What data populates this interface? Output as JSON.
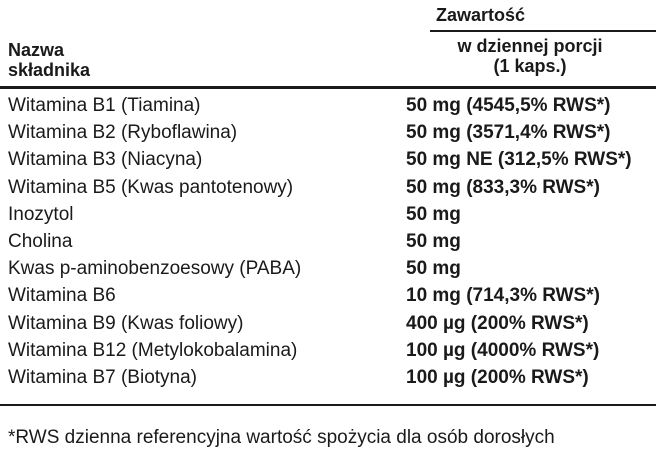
{
  "header": {
    "group_title": "Zawartość",
    "name_col": "Nazwa składnika",
    "amount_col": "w dziennej porcji (1 kaps.)"
  },
  "table": {
    "rows": [
      [
        "Witamina B1 (Tiamina)",
        "50 mg (4545,5% RWS*)"
      ],
      [
        "Witamina B2 (Ryboflawina)",
        "50 mg (3571,4% RWS*)"
      ],
      [
        "Witamina B3 (Niacyna)",
        "50 mg NE (312,5% RWS*)"
      ],
      [
        "Witamina B5 (Kwas pantotenowy)",
        "50 mg (833,3% RWS*)"
      ],
      [
        "Inozytol",
        "50 mg"
      ],
      [
        "Cholina",
        "50 mg"
      ],
      [
        "Kwas p-aminobenzoesowy (PABA)",
        "50 mg"
      ],
      [
        "Witamina B6",
        "10 mg (714,3% RWS*)"
      ],
      [
        "Witamina B9 (Kwas foliowy)",
        "400 µg (200% RWS*)"
      ],
      [
        "Witamina B12 (Metylokobalamina)",
        "100 µg (4000% RWS*)"
      ],
      [
        "Witamina B7 (Biotyna)",
        "100 µg (200% RWS*)"
      ]
    ]
  },
  "footnote": "*RWS dzienna referencyjna wartość spożycia dla osób dorosłych"
}
